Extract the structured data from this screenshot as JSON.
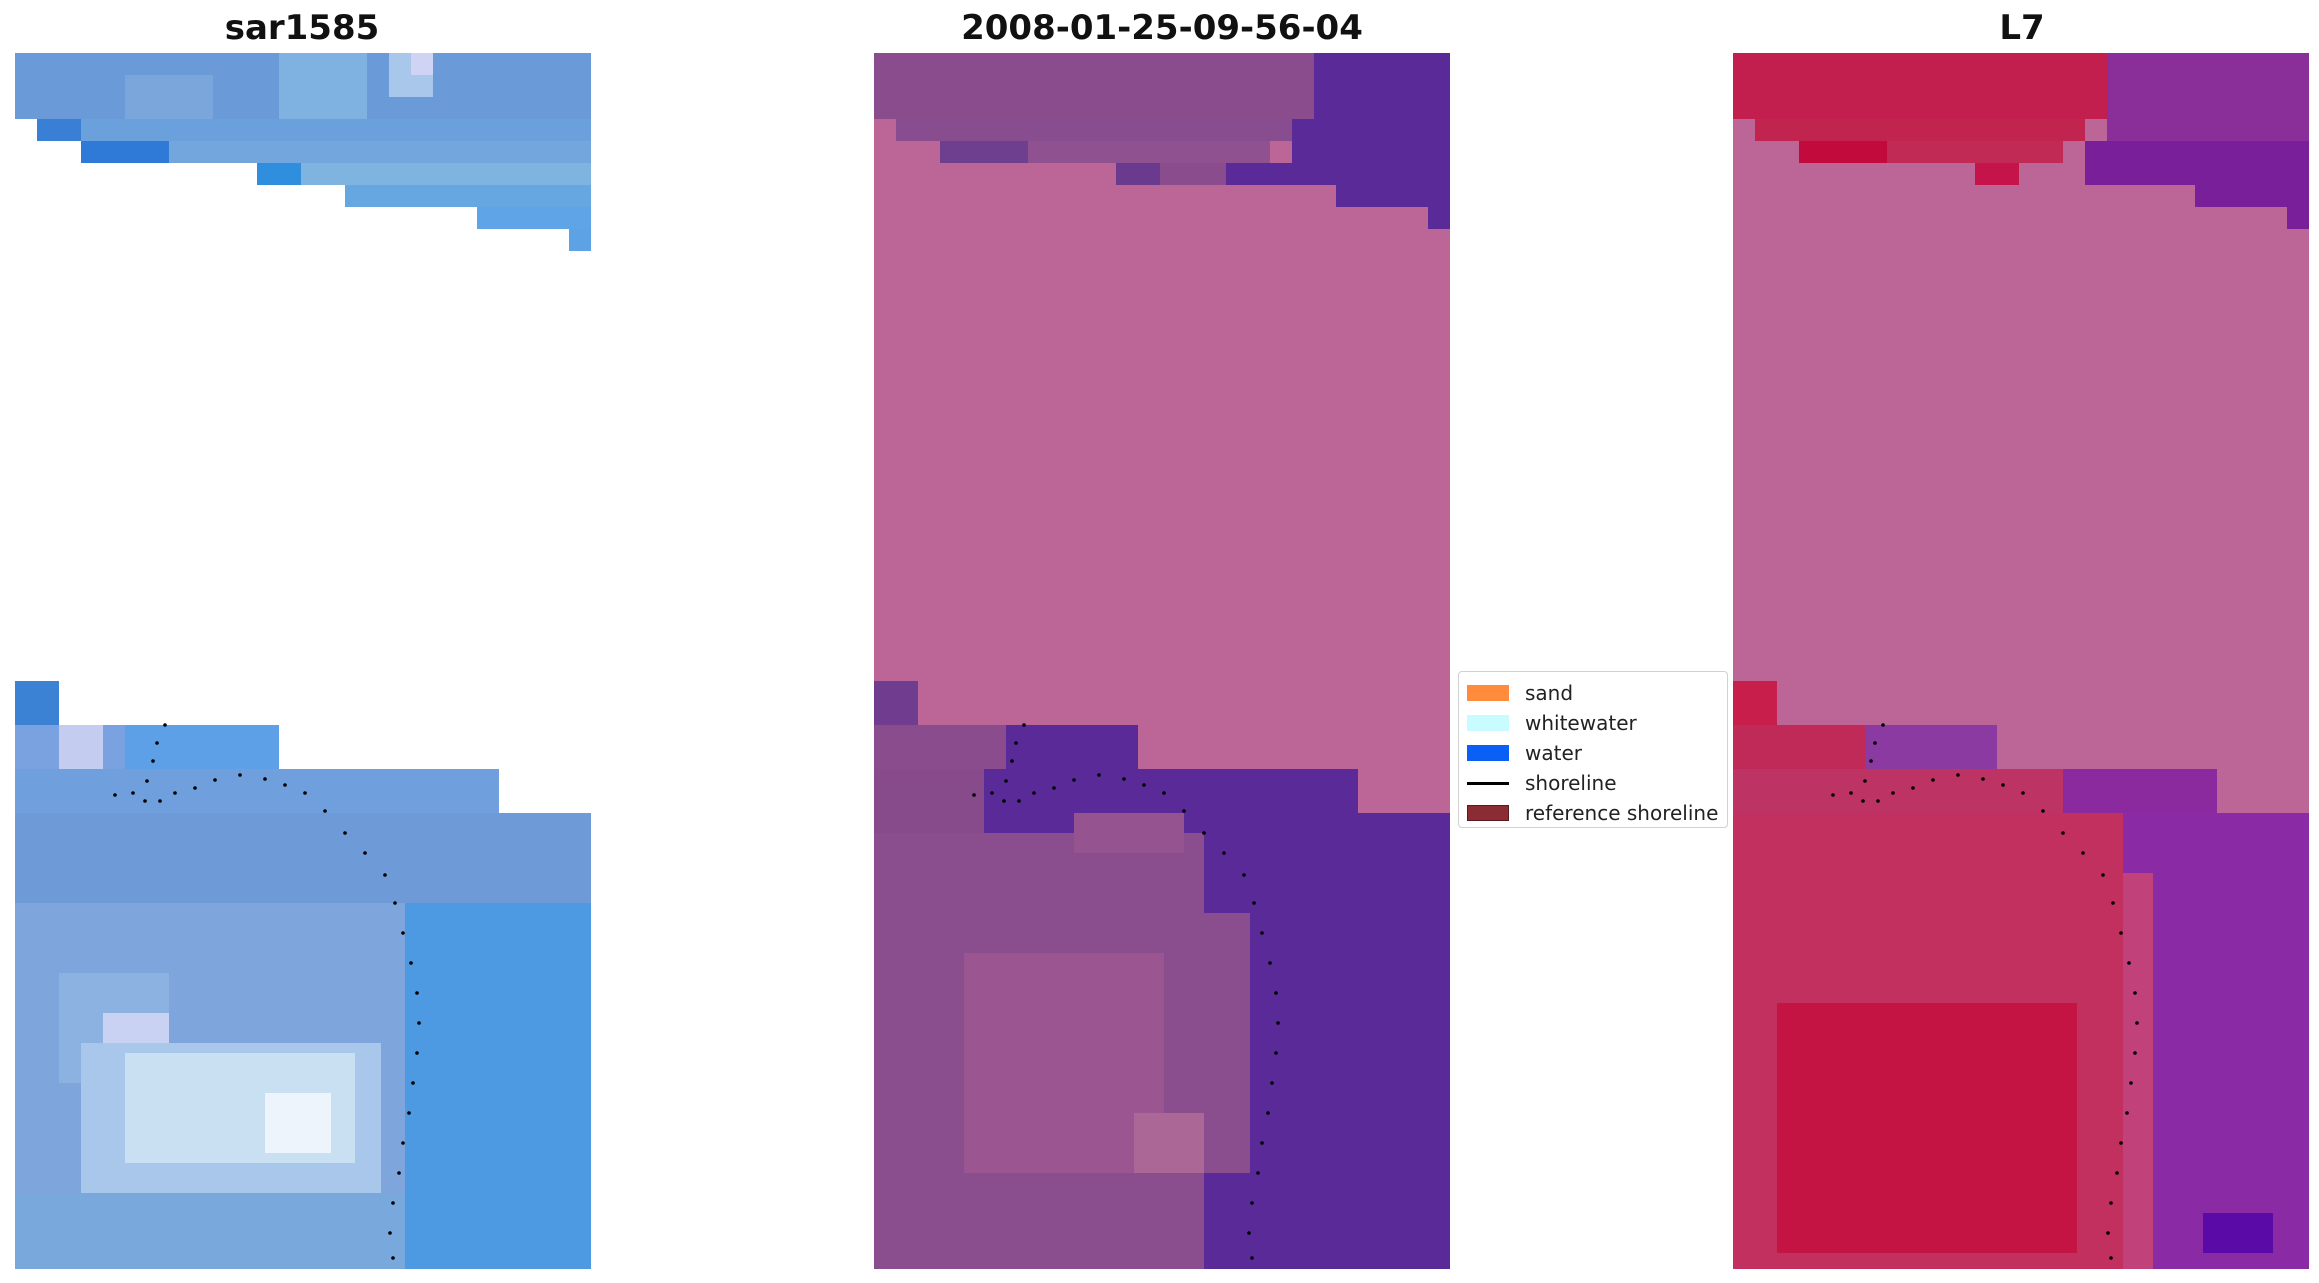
{
  "figure": {
    "panels": [
      {
        "title": "sar1585",
        "palette": "blue-rgb"
      },
      {
        "title": "2008-01-25-09-56-04",
        "palette": "purple-classified"
      },
      {
        "title": "L7",
        "palette": "red-purple-index"
      }
    ],
    "legend": {
      "items": [
        {
          "label": "sand",
          "color": "#ff8c3c",
          "kind": "patch"
        },
        {
          "label": "whitewater",
          "color": "#c8fcff",
          "kind": "patch"
        },
        {
          "label": "water",
          "color": "#0a5ff5",
          "kind": "patch"
        },
        {
          "label": "shoreline",
          "color": "#000000",
          "kind": "line"
        },
        {
          "label": "reference shoreline",
          "color": "#8b2c34",
          "kind": "patch"
        }
      ]
    }
  }
}
